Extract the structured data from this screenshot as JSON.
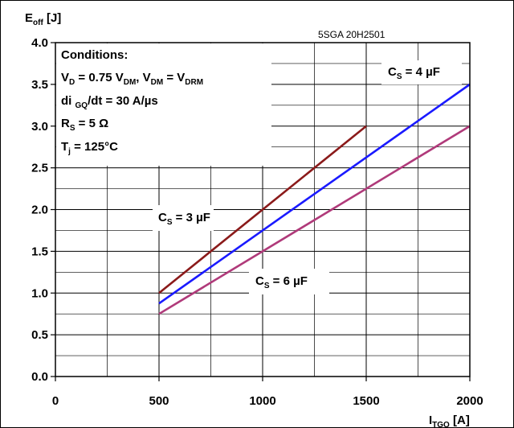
{
  "chart_data": {
    "type": "line",
    "code": "5SGA 20H2501",
    "ylabel": {
      "main": "E",
      "sub": "off",
      "unit": " [J]"
    },
    "xlabel": {
      "main": "I",
      "sub": "TGQ",
      "unit": " [A]"
    },
    "xlim": [
      0,
      2000
    ],
    "ylim": [
      0,
      4
    ],
    "x_ticks": [
      0,
      500,
      1000,
      1500,
      2000
    ],
    "x_tick_labels": [
      "0",
      "500",
      "1000",
      "1500",
      "2000"
    ],
    "y_ticks": [
      0,
      0.5,
      1.0,
      1.5,
      2.0,
      2.5,
      3.0,
      3.5,
      4.0
    ],
    "y_tick_labels": [
      "0.0",
      "0.5",
      "1.0",
      "1.5",
      "2.0",
      "2.5",
      "3.0",
      "3.5",
      "4.0"
    ],
    "x_minor_step": 250,
    "y_minor_step": 0.25,
    "grid": true,
    "conditions": {
      "title": "Conditions:",
      "lines": [
        [
          {
            "t": "V"
          },
          {
            "t": "D",
            "sub": true
          },
          {
            "t": " = 0.75 V"
          },
          {
            "t": "DM",
            "sub": true
          },
          {
            "t": ", V"
          },
          {
            "t": "DM",
            "sub": true
          },
          {
            "t": " = V"
          },
          {
            "t": "DRM",
            "sub": true
          }
        ],
        [
          {
            "t": "di "
          },
          {
            "t": "GQ",
            "sub": true
          },
          {
            "t": "/dt = 30 A/µs"
          }
        ],
        [
          {
            "t": "R"
          },
          {
            "t": "S",
            "sub": true
          },
          {
            "t": " = 5 Ω"
          }
        ],
        [
          {
            "t": "T"
          },
          {
            "t": "j",
            "sub": true
          },
          {
            "t": " = 125°C"
          }
        ]
      ]
    },
    "series": [
      {
        "name": "Cs = 3 µF",
        "label_parts": [
          {
            "t": "C"
          },
          {
            "t": "S",
            "sub": true
          },
          {
            "t": " = 3 µF"
          }
        ],
        "color": "#8b1a1a",
        "x": [
          500,
          1500
        ],
        "y": [
          1.0,
          3.0
        ]
      },
      {
        "name": "Cs = 4 µF",
        "label_parts": [
          {
            "t": "C"
          },
          {
            "t": "S",
            "sub": true
          },
          {
            "t": " = 4 µF"
          }
        ],
        "color": "#1a1aff",
        "x": [
          500,
          2000
        ],
        "y": [
          0.875,
          3.5
        ]
      },
      {
        "name": "Cs = 6 µF",
        "label_parts": [
          {
            "t": "C"
          },
          {
            "t": "S",
            "sub": true
          },
          {
            "t": " = 6 µF"
          }
        ],
        "color": "#b03a7a",
        "x": [
          500,
          2000
        ],
        "y": [
          0.75,
          3.0
        ]
      }
    ]
  }
}
